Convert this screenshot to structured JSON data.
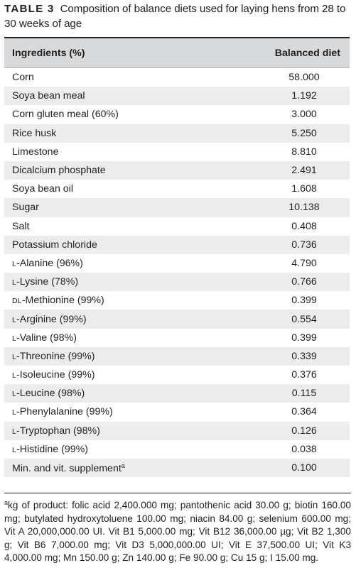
{
  "caption": {
    "label": "TABLE 3",
    "text": "Composition of balance diets used for laying hens from 28 to 30 weeks of age"
  },
  "table": {
    "headers": [
      "Ingredients (%)",
      "Balanced diet"
    ],
    "rows": [
      {
        "prefix": "",
        "name": "Corn",
        "sup": "",
        "value": "58.000"
      },
      {
        "prefix": "",
        "name": "Soya bean meal",
        "sup": "",
        "value": "1.192"
      },
      {
        "prefix": "",
        "name": "Corn gluten meal (60%)",
        "sup": "",
        "value": "3.000"
      },
      {
        "prefix": "",
        "name": "Rice husk",
        "sup": "",
        "value": "5.250"
      },
      {
        "prefix": "",
        "name": "Limestone",
        "sup": "",
        "value": "8.810"
      },
      {
        "prefix": "",
        "name": "Dicalcium phosphate",
        "sup": "",
        "value": "2.491"
      },
      {
        "prefix": "",
        "name": "Soya bean oil",
        "sup": "",
        "value": "1.608"
      },
      {
        "prefix": "",
        "name": "Sugar",
        "sup": "",
        "value": "10.138"
      },
      {
        "prefix": "",
        "name": "Salt",
        "sup": "",
        "value": "0.408"
      },
      {
        "prefix": "",
        "name": "Potassium chloride",
        "sup": "",
        "value": "0.736"
      },
      {
        "prefix": "l",
        "name": "-Alanine (96%)",
        "sup": "",
        "value": "4.790"
      },
      {
        "prefix": "l",
        "name": "-Lysine (78%)",
        "sup": "",
        "value": "0.766"
      },
      {
        "prefix": "dl",
        "name": "-Methionine (99%)",
        "sup": "",
        "value": "0.399"
      },
      {
        "prefix": "l",
        "name": "-Arginine (99%)",
        "sup": "",
        "value": "0.554"
      },
      {
        "prefix": "l",
        "name": "-Valine (98%)",
        "sup": "",
        "value": "0.399"
      },
      {
        "prefix": "l",
        "name": "-Threonine (99%)",
        "sup": "",
        "value": "0.339"
      },
      {
        "prefix": "l",
        "name": "-Isoleucine (99%)",
        "sup": "",
        "value": "0.376"
      },
      {
        "prefix": "l",
        "name": "-Leucine (98%)",
        "sup": "",
        "value": "0.115"
      },
      {
        "prefix": "l",
        "name": "-Phenylalanine (99%)",
        "sup": "",
        "value": "0.364"
      },
      {
        "prefix": "l",
        "name": "-Tryptophan (98%)",
        "sup": "",
        "value": "0.126"
      },
      {
        "prefix": "l",
        "name": "-Histidine (99%)",
        "sup": "",
        "value": "0.038"
      },
      {
        "prefix": "",
        "name": "Min. and vit. supplement",
        "sup": "a",
        "value": "0.100"
      }
    ]
  },
  "footnote": {
    "marker": "a",
    "text": "kg of product: folic acid 2,400.000 mg; pantothenic acid 30.00 g; biotin 160.00 mg; butylated hydroxytoluene 100.00 mg; niacin 84.00 g; selenium 600.00 mg; Vit A 20,000,000.00 UI. Vit B1 5,000.00 mg; Vit B12 36,000.00 µg; Vit B2 1,300 g; Vit B6 7,000.00 mg; Vit D3 5,000,000.00 UI; Vit E 37,500.00 UI; Vit K3 4,000.00 mg; Mn 150.00 g; Zn 140.00 g; Fe 90.00 g; Cu 15 g; I 15.00 mg."
  }
}
